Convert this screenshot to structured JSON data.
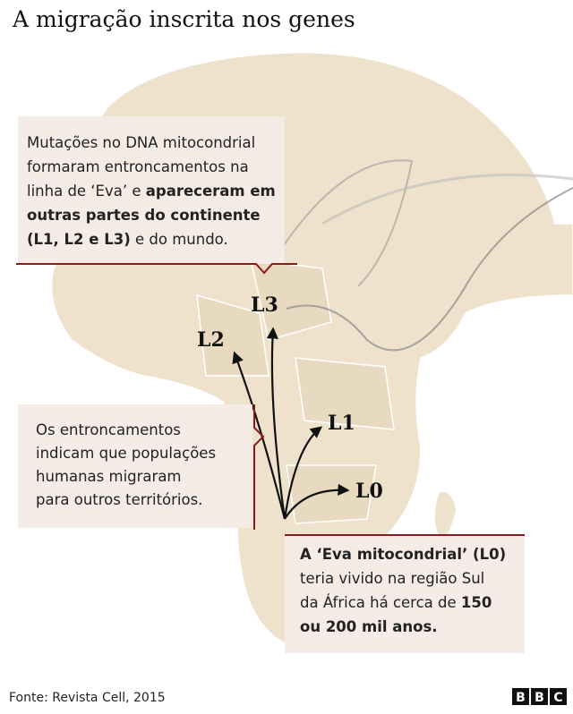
{
  "header": {
    "title": "A migração inscrita nos genes"
  },
  "callouts": [
    {
      "lines": [
        [
          {
            "text": "Mutações no DNA mitocondrial",
            "bold": false
          }
        ],
        [
          {
            "text": "formaram entroncamentos na",
            "bold": false
          }
        ],
        [
          {
            "text": "linha de ‘Eva’ e ",
            "bold": false
          },
          {
            "text": "apareceram em",
            "bold": true
          }
        ],
        [
          {
            "text": "outras partes do continente",
            "bold": true
          }
        ],
        [
          {
            "text": "(L1, L2 e L3)",
            "bold": true
          },
          {
            "text": " e do mundo.",
            "bold": false
          }
        ]
      ]
    },
    {
      "lines": [
        [
          {
            "text": "Os entroncamentos",
            "bold": false
          }
        ],
        [
          {
            "text": "indicam que populações",
            "bold": false
          }
        ],
        [
          {
            "text": "humanas migraram",
            "bold": false
          }
        ],
        [
          {
            "text": "para outros territórios.",
            "bold": false
          }
        ]
      ]
    },
    {
      "lines": [
        [
          {
            "text": "A ‘Eva mitocondrial’ (L0)",
            "bold": true
          }
        ],
        [
          {
            "text": "teria vivido na região Sul",
            "bold": false
          }
        ],
        [
          {
            "text": "da África há cerca de ",
            "bold": false
          },
          {
            "text": "150",
            "bold": true
          }
        ],
        [
          {
            "text": "ou 200 mil anos.",
            "bold": true
          }
        ]
      ]
    }
  ],
  "labels": [
    "L0",
    "L1",
    "L2",
    "L3"
  ],
  "footer": {
    "source": "Fonte: Revista Cell, 2015",
    "logo": [
      "B",
      "B",
      "C"
    ]
  }
}
